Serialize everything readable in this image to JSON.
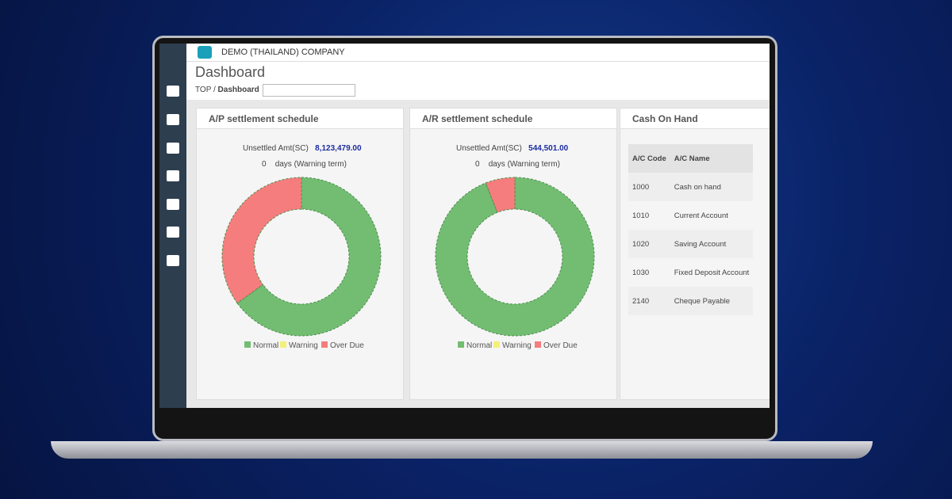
{
  "header": {
    "company": "DEMO (THAILAND) COMPANY"
  },
  "page": {
    "title": "Dashboard",
    "breadcrumb": [
      "TOP",
      "Dashboard"
    ]
  },
  "panels": [
    {
      "title": "A/P settlement schedule",
      "amount_label": "Unsettled Amt(SC)",
      "amount": "8,123,479.00",
      "days": "0",
      "days_label": "days (Warning term)",
      "chart": {
        "type": "pie",
        "categories": [
          "Normal",
          "Warning",
          "Over Due"
        ],
        "values": [
          65,
          0,
          35
        ],
        "colors": [
          "#72bd72",
          "#f3f07a",
          "#f57d7d"
        ]
      }
    },
    {
      "title": "A/R settlement schedule",
      "amount_label": "Unsettled Amt(SC)",
      "amount": "544,501.00",
      "days": "0",
      "days_label": "days (Warning term)",
      "chart": {
        "type": "pie",
        "categories": [
          "Normal",
          "Warning",
          "Over Due"
        ],
        "values": [
          94,
          0,
          6
        ],
        "colors": [
          "#72bd72",
          "#f3f07a",
          "#f57d7d"
        ]
      }
    }
  ],
  "cash": {
    "title": "Cash On Hand",
    "columns": [
      "A/C Code",
      "A/C Name"
    ],
    "rows": [
      [
        "1000",
        "Cash on hand"
      ],
      [
        "1010",
        "Current Account"
      ],
      [
        "1020",
        "Saving Account"
      ],
      [
        "1030",
        "Fixed Deposit Account"
      ],
      [
        "2140",
        "Cheque Payable"
      ]
    ]
  }
}
